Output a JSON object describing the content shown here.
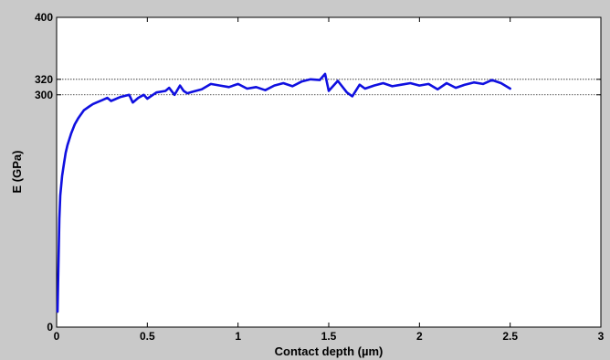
{
  "chart_data": {
    "type": "line",
    "title": "",
    "xlabel": "Contact depth (µm)",
    "ylabel": "E (GPa)",
    "xlim": [
      0,
      3
    ],
    "ylim": [
      0,
      400
    ],
    "x_ticks": [
      0,
      0.5,
      1,
      1.5,
      2,
      2.5,
      3
    ],
    "x_tick_labels": [
      "0",
      "0.5",
      "1",
      "1.5",
      "2",
      "2.5",
      "3"
    ],
    "y_ticks": [
      0,
      300,
      320,
      400
    ],
    "y_tick_labels": [
      "0",
      "300",
      "320",
      "400"
    ],
    "reference_lines": [
      300,
      320
    ],
    "grid": false,
    "legend": "none",
    "colors": {
      "series": "#1010e0",
      "reference": "#222222",
      "axes_bg": "#ffffff",
      "page_bg": "#c9c9c9"
    },
    "series": [
      {
        "x": [
          0.005,
          0.01,
          0.015,
          0.02,
          0.03,
          0.04,
          0.05,
          0.06,
          0.08,
          0.1,
          0.12,
          0.15,
          0.18,
          0.2,
          0.22,
          0.25,
          0.28,
          0.3,
          0.35,
          0.4,
          0.42,
          0.45,
          0.48,
          0.5,
          0.55,
          0.6,
          0.62,
          0.65,
          0.68,
          0.7,
          0.72,
          0.75,
          0.8,
          0.85,
          0.9,
          0.95,
          1.0,
          1.05,
          1.1,
          1.15,
          1.2,
          1.25,
          1.3,
          1.35,
          1.4,
          1.45,
          1.48,
          1.5,
          1.55,
          1.6,
          1.63,
          1.67,
          1.7,
          1.75,
          1.8,
          1.85,
          1.9,
          1.95,
          2.0,
          2.05,
          2.1,
          2.15,
          2.2,
          2.25,
          2.3,
          2.35,
          2.4,
          2.45,
          2.5
        ],
        "y": [
          20,
          80,
          140,
          170,
          195,
          210,
          225,
          235,
          250,
          262,
          270,
          280,
          285,
          288,
          290,
          293,
          296,
          292,
          297,
          300,
          290,
          296,
          300,
          295,
          303,
          305,
          309,
          300,
          312,
          305,
          302,
          304,
          307,
          314,
          312,
          310,
          314,
          308,
          310,
          306,
          312,
          315,
          311,
          317,
          320,
          319,
          327,
          305,
          318,
          303,
          298,
          313,
          308,
          312,
          315,
          311,
          313,
          315,
          312,
          314,
          307,
          315,
          309,
          313,
          316,
          314,
          319,
          315,
          308
        ]
      }
    ]
  }
}
